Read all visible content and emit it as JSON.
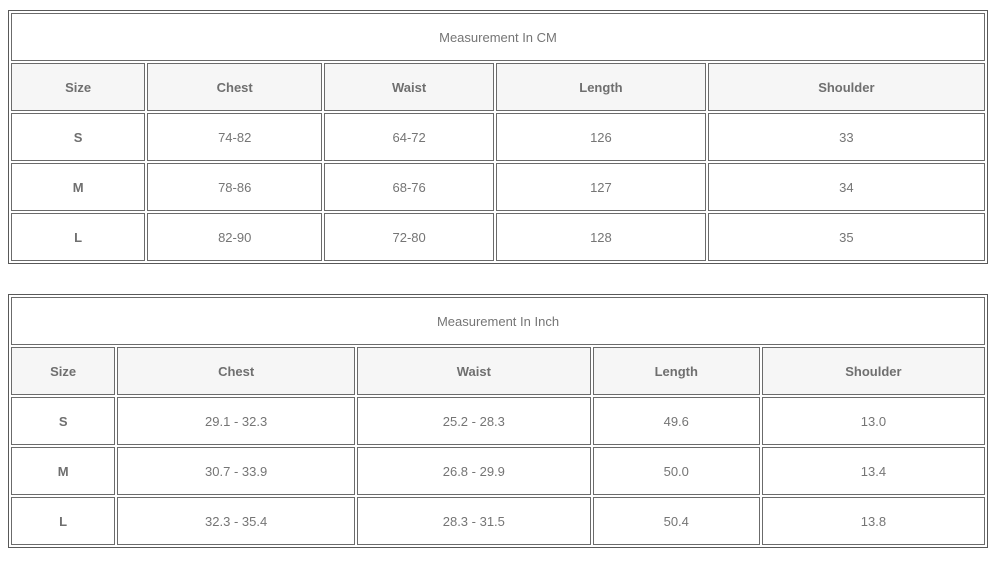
{
  "cm_table": {
    "title": "Measurement In CM",
    "headers": [
      "Size",
      "Chest",
      "Waist",
      "Length",
      "Shoulder"
    ],
    "rows": [
      [
        "S",
        "74-82",
        "64-72",
        "126",
        "33"
      ],
      [
        "M",
        "78-86",
        "68-76",
        "127",
        "34"
      ],
      [
        "L",
        "82-90",
        "72-80",
        "128",
        "35"
      ]
    ]
  },
  "inch_table": {
    "title": "Measurement In Inch",
    "headers": [
      "Size",
      "Chest",
      "Waist",
      "Length",
      "Shoulder"
    ],
    "rows": [
      [
        "S",
        "29.1 - 32.3",
        "25.2 - 28.3",
        "49.6",
        "13.0"
      ],
      [
        "M",
        "30.7 - 33.9",
        "26.8 - 29.9",
        "50.0",
        "13.4"
      ],
      [
        "L",
        "32.3 - 35.4",
        "28.3 - 31.5",
        "50.4",
        "13.8"
      ]
    ]
  },
  "colors": {
    "title_bar_bg": "#e9e9e9",
    "header_cell_bg": "#f6f6f6",
    "cell_border": "#6b6b6b",
    "outer_border": "#595959",
    "text": "#757575"
  }
}
